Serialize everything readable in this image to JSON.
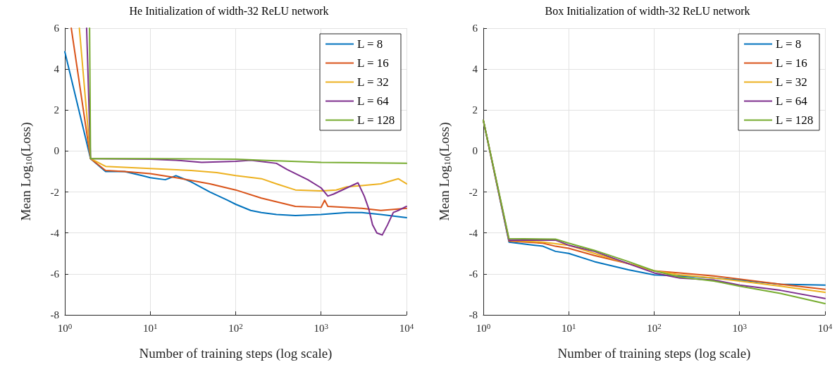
{
  "chart_data": [
    {
      "type": "line",
      "title": "He Initialization of width-32 ReLU network",
      "xlabel": "Number of training steps (log scale)",
      "ylabel": "Mean Log$_{10}$(Loss)",
      "log": "x",
      "grid": true,
      "legend": "top right",
      "marker": "none",
      "line_style": "solid",
      "xlim": [
        1,
        10000
      ],
      "xticks": [
        {
          "value": 1,
          "label": "10$^{0}$"
        },
        {
          "value": 10,
          "label": "10$^{1}$"
        },
        {
          "value": 100,
          "label": "10$^{2}$"
        },
        {
          "value": 1000,
          "label": "10$^{3}$"
        },
        {
          "value": 10000,
          "label": "10$^{4}$"
        }
      ],
      "ylim": [
        -8,
        6
      ],
      "yticks": [
        -8,
        -6,
        -4,
        -2,
        0,
        2,
        4,
        6
      ],
      "series": [
        {
          "name": "L = 8",
          "color": "#0072bd",
          "x": [
            1,
            2,
            3,
            5,
            8,
            10,
            15,
            20,
            30,
            50,
            80,
            100,
            150,
            200,
            300,
            500,
            1000,
            2000,
            3000,
            5000,
            10000
          ],
          "values": [
            4.85,
            -0.37,
            -1.0,
            -1.0,
            -1.2,
            -1.3,
            -1.4,
            -1.2,
            -1.5,
            -2.0,
            -2.4,
            -2.6,
            -2.9,
            -3.0,
            -3.1,
            -3.15,
            -3.1,
            -3.0,
            -3.0,
            -3.1,
            -3.25
          ]
        },
        {
          "name": "L = 16",
          "color": "#d95319",
          "x": [
            1.19,
            2,
            3,
            5,
            10,
            20,
            50,
            100,
            200,
            500,
            1000,
            1100,
            1200,
            3000,
            5000,
            10000
          ],
          "values": [
            6,
            -0.37,
            -0.95,
            -1.0,
            -1.1,
            -1.3,
            -1.6,
            -1.9,
            -2.3,
            -2.7,
            -2.75,
            -2.4,
            -2.7,
            -2.8,
            -2.9,
            -2.8
          ]
        },
        {
          "name": "L = 32",
          "color": "#edb120",
          "x": [
            1.48,
            2,
            3,
            10,
            30,
            60,
            100,
            200,
            300,
            500,
            1000,
            1500,
            2000,
            5000,
            8000,
            10000
          ],
          "values": [
            6,
            -0.37,
            -0.75,
            -0.85,
            -0.95,
            -1.05,
            -1.2,
            -1.35,
            -1.6,
            -1.9,
            -1.95,
            -1.9,
            -1.75,
            -1.6,
            -1.35,
            -1.6
          ]
        },
        {
          "name": "L = 64",
          "color": "#7e2f8e",
          "x": [
            1.8,
            2,
            10,
            20,
            40,
            100,
            150,
            300,
            400,
            700,
            1000,
            1200,
            1400,
            2000,
            2700,
            3200,
            3600,
            4000,
            4500,
            5200,
            6000,
            7000,
            8000,
            10000
          ],
          "values": [
            6,
            -0.37,
            -0.4,
            -0.45,
            -0.55,
            -0.5,
            -0.45,
            -0.6,
            -0.9,
            -1.4,
            -1.8,
            -2.2,
            -2.1,
            -1.8,
            -1.55,
            -2.2,
            -2.8,
            -3.6,
            -4.0,
            -4.1,
            -3.6,
            -3.0,
            -2.9,
            -2.7
          ]
        },
        {
          "name": "L = 128",
          "color": "#77ac30",
          "x": [
            1.95,
            2,
            10,
            100,
            200,
            1000,
            10000
          ],
          "values": [
            6,
            -0.37,
            -0.37,
            -0.4,
            -0.45,
            -0.55,
            -0.6
          ]
        }
      ]
    },
    {
      "type": "line",
      "title": "Box Initialization of width-32 ReLU network",
      "xlabel": "Number of training steps (log scale)",
      "ylabel": "Mean Log$_{10}$(Loss)",
      "log": "x",
      "grid": true,
      "legend": "top right",
      "marker": "none",
      "line_style": "solid",
      "xlim": [
        1,
        10000
      ],
      "xticks": [
        {
          "value": 1,
          "label": "10$^{0}$"
        },
        {
          "value": 10,
          "label": "10$^{1}$"
        },
        {
          "value": 100,
          "label": "10$^{2}$"
        },
        {
          "value": 1000,
          "label": "10$^{3}$"
        },
        {
          "value": 10000,
          "label": "10$^{4}$"
        }
      ],
      "ylim": [
        -8,
        6
      ],
      "yticks": [
        -8,
        -6,
        -4,
        -2,
        0,
        2,
        4,
        6
      ],
      "series": [
        {
          "name": "L = 8",
          "color": "#0072bd",
          "x": [
            1,
            2,
            4,
            5,
            7,
            10,
            20,
            50,
            100,
            200,
            500,
            1000,
            3000,
            10000
          ],
          "values": [
            1.5,
            -4.45,
            -4.6,
            -4.65,
            -4.9,
            -5.0,
            -5.4,
            -5.8,
            -6.05,
            -6.1,
            -6.2,
            -6.3,
            -6.5,
            -6.55
          ]
        },
        {
          "name": "L = 16",
          "color": "#d95319",
          "x": [
            1,
            2,
            5,
            7,
            10,
            20,
            50,
            100,
            200,
            500,
            1000,
            3000,
            10000
          ],
          "values": [
            1.5,
            -4.4,
            -4.5,
            -4.65,
            -4.75,
            -5.1,
            -5.5,
            -5.85,
            -5.95,
            -6.1,
            -6.25,
            -6.5,
            -6.75
          ]
        },
        {
          "name": "L = 32",
          "color": "#edb120",
          "x": [
            1,
            2,
            5,
            10,
            20,
            50,
            100,
            200,
            500,
            1000,
            3000,
            10000
          ],
          "values": [
            1.5,
            -4.35,
            -4.45,
            -4.6,
            -5.0,
            -5.5,
            -5.85,
            -6.05,
            -6.2,
            -6.35,
            -6.6,
            -6.9
          ]
        },
        {
          "name": "L = 64",
          "color": "#7e2f8e",
          "x": [
            1,
            2,
            7,
            10,
            20,
            50,
            100,
            200,
            500,
            1000,
            3000,
            10000
          ],
          "values": [
            1.5,
            -4.35,
            -4.35,
            -4.6,
            -4.9,
            -5.5,
            -5.95,
            -6.2,
            -6.3,
            -6.55,
            -6.8,
            -7.2
          ]
        },
        {
          "name": "L = 128",
          "color": "#77ac30",
          "x": [
            1,
            2,
            7,
            10,
            20,
            50,
            100,
            200,
            500,
            1000,
            3000,
            10000
          ],
          "values": [
            1.5,
            -4.28,
            -4.3,
            -4.5,
            -4.85,
            -5.4,
            -5.85,
            -6.15,
            -6.35,
            -6.6,
            -6.95,
            -7.45
          ]
        }
      ]
    }
  ]
}
